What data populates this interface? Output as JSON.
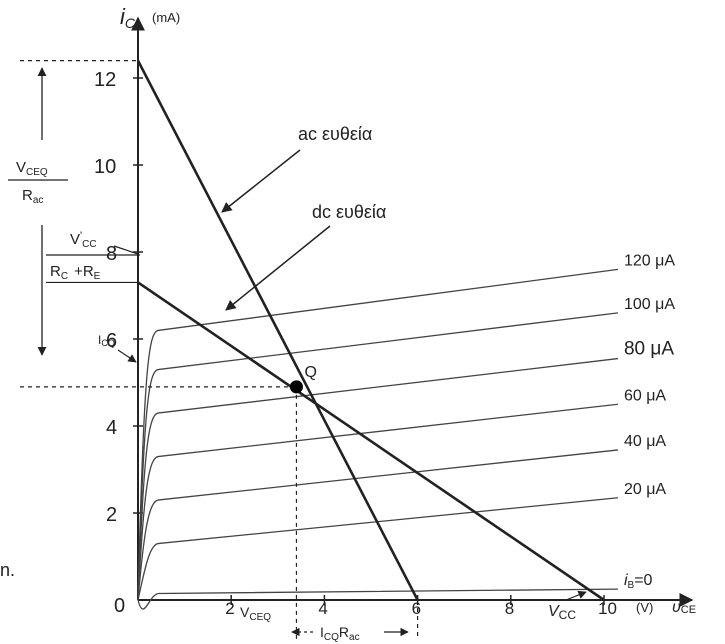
{
  "axes": {
    "y_symbol": "i",
    "y_sub": "C",
    "y_unit": "(mA)",
    "x_symbol": "υ",
    "x_sub": "CE",
    "x_unit": "(V)",
    "origin": "0"
  },
  "chart_data": {
    "type": "line",
    "x_range": [
      0,
      10
    ],
    "y_range": [
      0,
      12
    ],
    "x_ticks": [
      "2",
      "4",
      "6",
      "8",
      "10"
    ],
    "y_ticks": [
      "2",
      "4",
      "6",
      "8",
      "10",
      "12"
    ],
    "base_current_curves": [
      {
        "label": "120 μA",
        "start_ic": 6.2,
        "end_ic": 7.6
      },
      {
        "label": "100 μA",
        "start_ic": 5.3,
        "end_ic": 6.6
      },
      {
        "label": "80 μA",
        "start_ic": 4.3,
        "end_ic": 5.55
      },
      {
        "label": "60 μA",
        "start_ic": 3.3,
        "end_ic": 4.5
      },
      {
        "label": "40 μA",
        "start_ic": 2.3,
        "end_ic": 3.45
      },
      {
        "label": "20 μA",
        "start_ic": 1.3,
        "end_ic": 2.35
      },
      {
        "label": "=0",
        "label_prefix": "i",
        "label_sub": "B",
        "start_ic": 0.15,
        "end_ic": 0.25
      }
    ],
    "dc_load_line": {
      "label": "dc ευθεία",
      "x": [
        0,
        10
      ],
      "y": [
        7.3,
        0
      ]
    },
    "ac_load_line": {
      "label": "ac ευθεία",
      "x": [
        0,
        6
      ],
      "y": [
        12.4,
        0
      ]
    },
    "q_point": {
      "label": "Q",
      "x": 3.4,
      "y": 4.9
    }
  },
  "annotations": {
    "vceq_rac": {
      "num": "V",
      "num_sub": "CEQ",
      "den": "R",
      "den_sub": "ac"
    },
    "vcc_rc_re": {
      "num": "V",
      "num_sub": "CC",
      "den_a": "R",
      "den_a_sub": "C",
      "den_plus": "+R",
      "den_b_sub": "E"
    },
    "icq": {
      "main": "I",
      "sub": "CQ"
    },
    "vceq": {
      "main": "V",
      "sub": "CEQ"
    },
    "icq_rac": {
      "main": "I",
      "sub": "CQ",
      "main2": "R",
      "sub2": "ac"
    },
    "vcc": {
      "main": "V",
      "sub": "CC"
    },
    "stray_text": "n."
  }
}
